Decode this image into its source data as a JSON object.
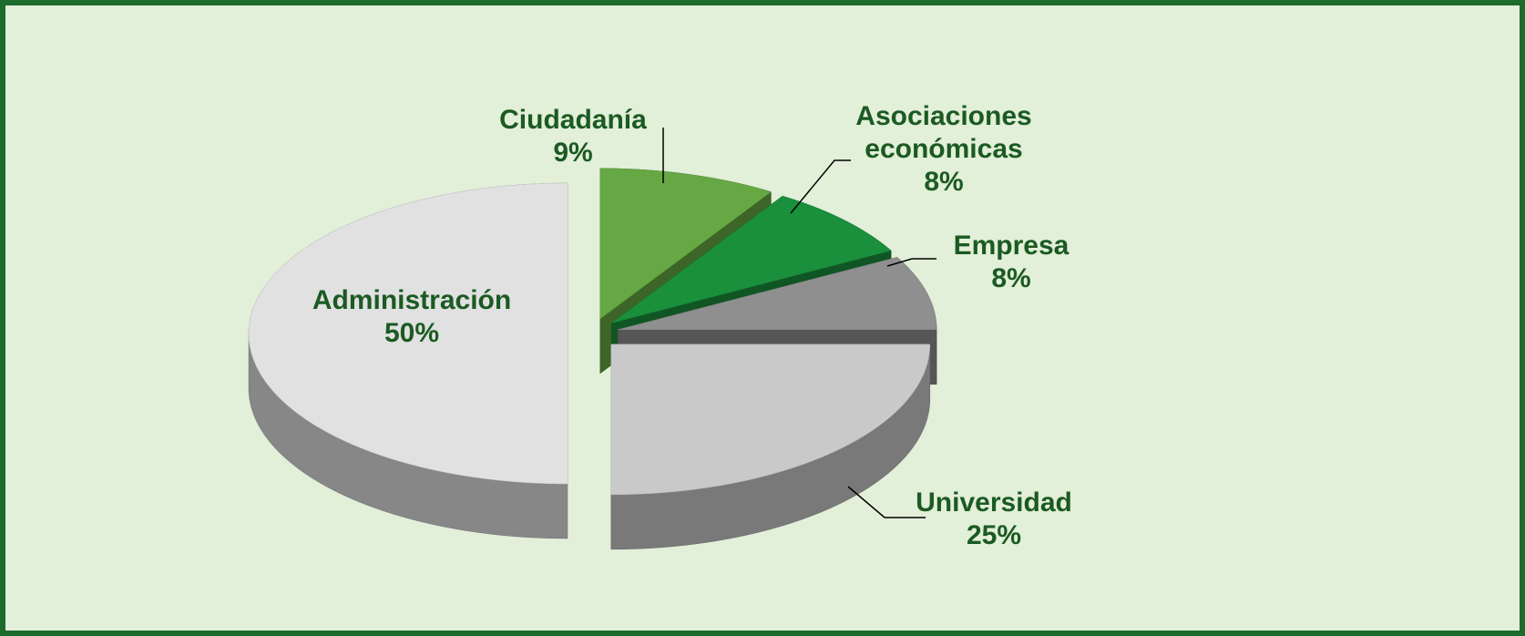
{
  "chart_data": {
    "type": "pie",
    "categories": [
      "Ciudadanía",
      "Asociaciones económicas",
      "Empresa",
      "Universidad",
      "Administración"
    ],
    "values": [
      9,
      8,
      8,
      25,
      50
    ],
    "value_labels": [
      "9%",
      "8%",
      "8%",
      "25%",
      "50%"
    ],
    "colors": [
      "#66a843",
      "#1a8f3c",
      "#8f8f8f",
      "#c9c9c9",
      "#e1e1e1"
    ]
  }
}
